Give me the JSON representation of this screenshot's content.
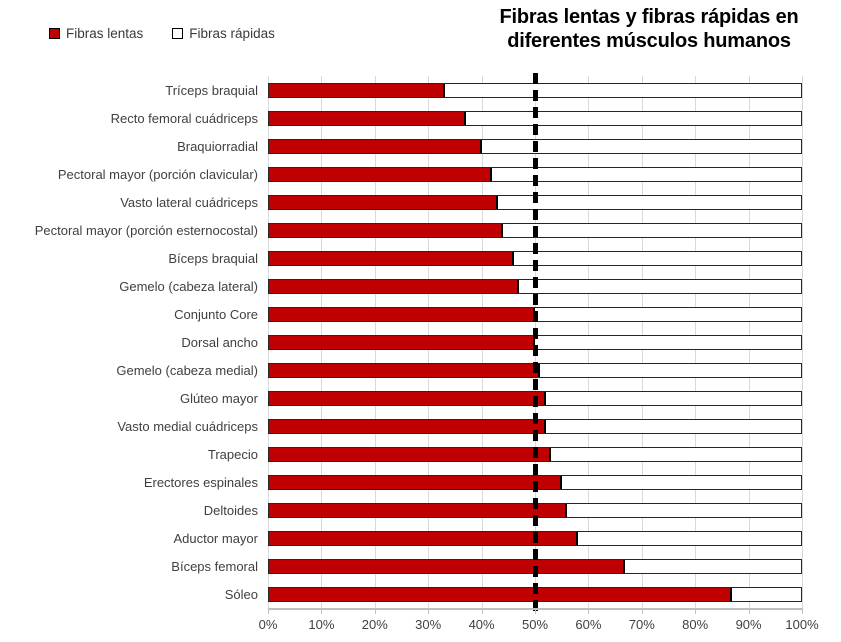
{
  "title": {
    "line1": "Fibras lentas y fibras rápidas en",
    "line2": "diferentes músculos humanos"
  },
  "legend": {
    "items": [
      {
        "label": "Fibras lentas",
        "color": "#c00000"
      },
      {
        "label": "Fibras rápidas",
        "color": "#ffffff"
      }
    ]
  },
  "colors": {
    "slow_fiber": "#c00000",
    "fast_fiber": "#ffffff",
    "bar_border": "#262626",
    "gridline": "#d9d9d9",
    "axis": "#bfbfbf",
    "text": "#404040",
    "reference_line": "#000000"
  },
  "chart_data": {
    "type": "bar",
    "orientation": "horizontal",
    "stacked": true,
    "title": "Fibras lentas y fibras rápidas en diferentes músculos humanos",
    "xlabel": "",
    "ylabel": "",
    "xlim": [
      0,
      100
    ],
    "x_ticks": [
      "0%",
      "10%",
      "20%",
      "30%",
      "40%",
      "50%",
      "60%",
      "70%",
      "80%",
      "90%",
      "100%"
    ],
    "grid": true,
    "legend_position": "top-left",
    "reference_line": {
      "value": 50,
      "style": "dashed",
      "color": "#000000"
    },
    "categories": [
      "Tríceps braquial",
      "Recto femoral cuádriceps",
      "Braquiorradial",
      "Pectoral mayor (porción clavicular)",
      "Vasto lateral cuádriceps",
      "Pectoral mayor (porción esternocostal)",
      "Bíceps braquial",
      "Gemelo (cabeza lateral)",
      "Conjunto Core",
      "Dorsal ancho",
      "Gemelo (cabeza medial)",
      "Glúteo mayor",
      "Vasto medial cuádriceps",
      "Trapecio",
      "Erectores espinales",
      "Deltoides",
      "Aductor mayor",
      "Bíceps femoral",
      "Sóleo"
    ],
    "series": [
      {
        "name": "Fibras lentas",
        "color": "#c00000",
        "values": [
          33,
          37,
          40,
          42,
          43,
          44,
          46,
          47,
          50,
          50,
          51,
          52,
          52,
          53,
          55,
          56,
          58,
          67,
          87
        ]
      },
      {
        "name": "Fibras rápidas",
        "color": "#ffffff",
        "values": [
          67,
          63,
          60,
          58,
          57,
          56,
          54,
          53,
          50,
          50,
          49,
          48,
          48,
          47,
          45,
          44,
          42,
          33,
          13
        ]
      }
    ]
  }
}
